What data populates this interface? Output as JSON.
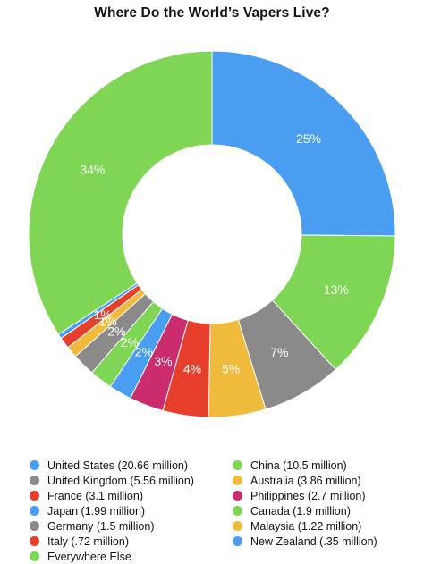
{
  "chart_data": {
    "type": "pie",
    "donut": true,
    "title": "Where Do the World’s Vapers Live?",
    "legend_position": "bottom",
    "slices": [
      {
        "label": "United States (20.66 million)",
        "percent": 25,
        "display": "25%",
        "color": "#4a9ef1"
      },
      {
        "label": "China (10.5 million)",
        "percent": 13,
        "display": "13%",
        "color": "#7fd654"
      },
      {
        "label": "United Kingdom (5.56 million)",
        "percent": 7,
        "display": "7%",
        "color": "#8a8a8a"
      },
      {
        "label": "Australia (3.86 million)",
        "percent": 5,
        "display": "5%",
        "color": "#f0bb3c"
      },
      {
        "label": "France (3.1 million)",
        "percent": 4,
        "display": "4%",
        "color": "#e6402c"
      },
      {
        "label": "Philippines (2.7 million)",
        "percent": 3,
        "display": "3%",
        "color": "#cb2c6e"
      },
      {
        "label": "Japan (1.99 million)",
        "percent": 2,
        "display": "2%",
        "color": "#4a9ef1"
      },
      {
        "label": "Canada (1.9 million)",
        "percent": 2,
        "display": "2%",
        "color": "#7fd654"
      },
      {
        "label": "Germany (1.5 million)",
        "percent": 2,
        "display": "2%",
        "color": "#8a8a8a"
      },
      {
        "label": "Malaysia (1.22 million)",
        "percent": 1,
        "display": "1%",
        "color": "#f0bb3c"
      },
      {
        "label": "Italy (.72 million)",
        "percent": 1,
        "display": "1%",
        "color": "#e6402c"
      },
      {
        "label": "New Zealand (.35 million)",
        "percent": 0.4,
        "display": "",
        "color": "#4a9ef1"
      },
      {
        "label": "Everywhere Else",
        "percent": 34,
        "display": "34%",
        "color": "#7fd654"
      }
    ],
    "legend_order": [
      "United States (20.66 million)",
      "China (10.5 million)",
      "United Kingdom (5.56 million)",
      "Australia (3.86 million)",
      "France (3.1 million)",
      "Philippines (2.7 million)",
      "Japan (1.99 million)",
      "Canada (1.9 million)",
      "Germany (1.5 million)",
      "Malaysia (1.22 million)",
      "Italy (.72 million)",
      "New Zealand (.35 million)",
      "Everywhere Else"
    ]
  }
}
